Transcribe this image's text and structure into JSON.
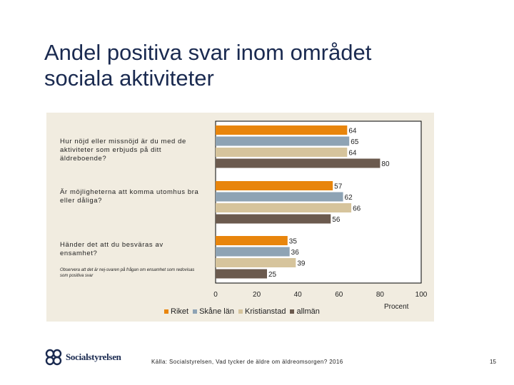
{
  "slide": {
    "title_line1": "Andel positiva svar inom området",
    "title_line2": "sociala aktiviteter",
    "note": "Observera att det är nej-svaren på frågan om ensamhet som redovisas som positiva svar",
    "source": "Källa: Socialstyrelsen, Vad tycker de äldre om äldreomsorgen? 2016",
    "page_number": "15",
    "logo_text": "Socialstyrelsen"
  },
  "chart_data": {
    "type": "bar",
    "orientation": "horizontal",
    "categories": [
      "Hur nöjd eller missnöjd är du med de aktiviteter som erbjuds på ditt äldreboende?",
      "Är möjligheterna att komma utomhus bra eller dåliga?",
      "Händer det att du besväras av ensamhet?"
    ],
    "series": [
      {
        "name": "Riket",
        "color": "#e8850c",
        "values": [
          64,
          57,
          35
        ]
      },
      {
        "name": "Skåne län",
        "color": "#8ea3b4",
        "values": [
          65,
          62,
          36
        ]
      },
      {
        "name": "Kristianstad",
        "color": "#d6c49c",
        "values": [
          64,
          66,
          39
        ]
      },
      {
        "name": "allmän",
        "color": "#6b5a4e",
        "values": [
          80,
          56,
          25
        ]
      }
    ],
    "xlim": [
      0,
      100
    ],
    "xticks": [
      "0",
      "20",
      "40",
      "60",
      "80",
      "100"
    ],
    "xlabel": "Procent",
    "legend_position": "bottom",
    "grid": false
  }
}
